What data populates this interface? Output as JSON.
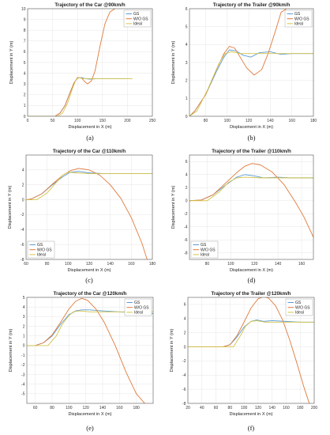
{
  "colors": {
    "gs": "#5b9bd5",
    "wogs": "#e07a3c",
    "ideal": "#d4c44a",
    "grid": "#e6e6e6",
    "axis": "#555555"
  },
  "chart_data": [
    {
      "type": "line",
      "caption": "(a)",
      "title": "Trajectory of the Car @90km/h",
      "xlabel": "Displacement in X (m)",
      "ylabel": "Displacement in Y (m)",
      "xlim": [
        0,
        250
      ],
      "ylim": [
        0,
        10
      ],
      "xticks": [
        0,
        50,
        100,
        150,
        200,
        250
      ],
      "yticks": [
        0,
        1,
        2,
        3,
        4,
        5,
        6,
        7,
        8,
        9,
        10
      ],
      "legend": "top-right",
      "grid": true,
      "series": [
        {
          "name": "GS",
          "color": "#5b9bd5",
          "x": [
            0,
            55,
            65,
            75,
            85,
            93,
            100,
            108,
            115,
            125,
            140,
            160,
            180,
            200
          ],
          "y": [
            0,
            0,
            0.3,
            1.0,
            2.2,
            3.1,
            3.55,
            3.6,
            3.5,
            3.45,
            3.5,
            3.5,
            3.5,
            3.5
          ]
        },
        {
          "name": "W/O GS",
          "color": "#e07a3c",
          "x": [
            0,
            55,
            65,
            75,
            85,
            93,
            100,
            108,
            115,
            120,
            128,
            135,
            145,
            155,
            165,
            175
          ],
          "y": [
            0,
            0,
            0.3,
            1.0,
            2.2,
            3.1,
            3.6,
            3.55,
            3.2,
            3.0,
            3.3,
            4.2,
            6.5,
            8.6,
            9.7,
            10.0
          ]
        },
        {
          "name": "Ideal",
          "color": "#d4c44a",
          "x": [
            0,
            60,
            70,
            80,
            90,
            97,
            103,
            110,
            150,
            210
          ],
          "y": [
            0,
            0,
            0.3,
            1.2,
            2.6,
            3.4,
            3.6,
            3.5,
            3.5,
            3.5
          ]
        }
      ]
    },
    {
      "type": "line",
      "caption": "(b)",
      "title": "Trajectory of the Trailer @90km/h",
      "xlabel": "Displacement in X (m)",
      "ylabel": "Displacement in Y (m)",
      "xlim": [
        65,
        180
      ],
      "ylim": [
        0,
        6
      ],
      "xticks": [
        80,
        100,
        120,
        140,
        160,
        180
      ],
      "yticks": [
        0,
        1,
        2,
        3,
        4,
        5,
        6
      ],
      "legend": "top-right",
      "grid": true,
      "series": [
        {
          "name": "GS",
          "color": "#5b9bd5",
          "x": [
            65,
            70,
            80,
            90,
            97,
            102,
            108,
            115,
            122,
            130,
            140,
            150,
            160,
            170,
            180
          ],
          "y": [
            0,
            0.3,
            1.2,
            2.5,
            3.3,
            3.7,
            3.65,
            3.4,
            3.3,
            3.55,
            3.6,
            3.45,
            3.5,
            3.5,
            3.5
          ]
        },
        {
          "name": "W/O GS",
          "color": "#e07a3c",
          "x": [
            65,
            70,
            80,
            90,
            97,
            102,
            107,
            112,
            118,
            125,
            132,
            138,
            145,
            150,
            155
          ],
          "y": [
            0,
            0.3,
            1.2,
            2.6,
            3.5,
            3.9,
            3.8,
            3.3,
            2.7,
            2.3,
            2.6,
            3.5,
            4.8,
            5.8,
            6.0
          ]
        },
        {
          "name": "Ideal",
          "color": "#d4c44a",
          "x": [
            65,
            72,
            82,
            92,
            98,
            104,
            112,
            130,
            160,
            180
          ],
          "y": [
            0,
            0.3,
            1.5,
            2.9,
            3.5,
            3.6,
            3.5,
            3.5,
            3.5,
            3.5
          ]
        }
      ]
    },
    {
      "type": "line",
      "caption": "(c)",
      "title": "Trajectory of the Car @110km/h",
      "xlabel": "Displacement in X (m)",
      "ylabel": "Displacement in Y (m)",
      "xlim": [
        60,
        180
      ],
      "ylim": [
        -8,
        6
      ],
      "xticks": [
        60,
        80,
        100,
        120,
        140,
        160,
        180
      ],
      "yticks": [
        -8,
        -6,
        -4,
        -2,
        0,
        2,
        4
      ],
      "legend": "bottom-left",
      "grid": true,
      "series": [
        {
          "name": "GS",
          "color": "#5b9bd5",
          "x": [
            60,
            65,
            75,
            85,
            95,
            102,
            110,
            120,
            135,
            150,
            165,
            180
          ],
          "y": [
            0,
            0.1,
            0.8,
            2.0,
            3.1,
            3.7,
            3.8,
            3.6,
            3.5,
            3.5,
            3.5,
            3.5
          ]
        },
        {
          "name": "W/O GS",
          "color": "#e07a3c",
          "x": [
            60,
            65,
            75,
            85,
            95,
            102,
            110,
            120,
            130,
            140,
            150,
            160,
            170,
            175
          ],
          "y": [
            0,
            0.1,
            0.8,
            2.1,
            3.3,
            3.9,
            4.2,
            4.0,
            3.3,
            2.0,
            0.2,
            -2.4,
            -5.8,
            -8.0
          ]
        },
        {
          "name": "Ideal",
          "color": "#d4c44a",
          "x": [
            60,
            70,
            80,
            88,
            95,
            100,
            108,
            120,
            150,
            180
          ],
          "y": [
            0,
            0,
            0.9,
            2.2,
            3.3,
            3.7,
            3.6,
            3.5,
            3.5,
            3.5
          ]
        }
      ]
    },
    {
      "type": "line",
      "caption": "(d)",
      "title": "Trajectory of the Trailer @110km/h",
      "xlabel": "Displacement in X (m)",
      "ylabel": "Displacement in Y (m)",
      "xlim": [
        65,
        170
      ],
      "ylim": [
        -9,
        7
      ],
      "xticks": [
        80,
        100,
        120,
        140,
        160
      ],
      "yticks": [
        -8,
        -6,
        -4,
        -2,
        0,
        2,
        4,
        6
      ],
      "legend": "bottom-left",
      "grid": true,
      "series": [
        {
          "name": "GS",
          "color": "#5b9bd5",
          "x": [
            65,
            75,
            85,
            95,
            105,
            112,
            120,
            128,
            140,
            150,
            160,
            170
          ],
          "y": [
            0,
            0.1,
            0.9,
            2.3,
            3.6,
            4.0,
            3.8,
            3.5,
            3.6,
            3.5,
            3.5,
            3.5
          ]
        },
        {
          "name": "W/O GS",
          "color": "#e07a3c",
          "x": [
            65,
            75,
            85,
            95,
            105,
            112,
            118,
            125,
            135,
            145,
            155,
            162,
            170
          ],
          "y": [
            0,
            0.1,
            0.9,
            2.6,
            4.3,
            5.3,
            5.7,
            5.5,
            4.4,
            2.5,
            -0.3,
            -2.5,
            -5.6
          ]
        },
        {
          "name": "Ideal",
          "color": "#d4c44a",
          "x": [
            65,
            80,
            90,
            98,
            105,
            112,
            125,
            150,
            170
          ],
          "y": [
            0,
            0,
            1.3,
            2.8,
            3.5,
            3.6,
            3.5,
            3.5,
            3.5
          ]
        }
      ]
    },
    {
      "type": "line",
      "caption": "(e)",
      "title": "Trajectory of the Car @120km/h",
      "xlabel": "Displacement in X (m)",
      "ylabel": "Displacement in Y (m)",
      "xlim": [
        50,
        200
      ],
      "ylim": [
        -6,
        5
      ],
      "xticks": [
        60,
        80,
        100,
        120,
        140,
        160,
        180
      ],
      "yticks": [
        -5,
        -4,
        -3,
        -2,
        -1,
        0,
        1,
        2,
        3,
        4,
        5
      ],
      "legend": "top-right",
      "grid": true,
      "series": [
        {
          "name": "GS",
          "color": "#5b9bd5",
          "x": [
            50,
            60,
            70,
            80,
            90,
            100,
            108,
            115,
            125,
            140,
            160,
            180,
            200
          ],
          "y": [
            0,
            0,
            0.3,
            1.0,
            2.2,
            3.2,
            3.6,
            3.7,
            3.7,
            3.6,
            3.5,
            3.4,
            3.3
          ]
        },
        {
          "name": "W/O GS",
          "color": "#e07a3c",
          "x": [
            50,
            60,
            70,
            80,
            90,
            100,
            108,
            115,
            122,
            132,
            142,
            155,
            168,
            180,
            190
          ],
          "y": [
            0,
            0,
            0.3,
            1.1,
            2.4,
            3.8,
            4.6,
            4.9,
            4.7,
            3.8,
            2.4,
            0.0,
            -2.8,
            -5.0,
            -6.0
          ]
        },
        {
          "name": "Ideal",
          "color": "#d4c44a",
          "x": [
            50,
            75,
            85,
            92,
            100,
            105,
            112,
            125,
            150,
            200
          ],
          "y": [
            0,
            0,
            1.0,
            2.2,
            3.1,
            3.5,
            3.6,
            3.5,
            3.5,
            3.5
          ]
        }
      ]
    },
    {
      "type": "line",
      "caption": "(f)",
      "title": "Trajectory of the Trailer @120km/h",
      "xlabel": "Displacement in X (m)",
      "ylabel": "Displacement in Y (m)",
      "xlim": [
        20,
        200
      ],
      "ylim": [
        -8,
        7
      ],
      "xticks": [
        20,
        40,
        60,
        80,
        100,
        120,
        140,
        160,
        180,
        200
      ],
      "yticks": [
        -8,
        -6,
        -4,
        -2,
        0,
        2,
        4,
        6
      ],
      "legend": "top-right",
      "grid": true,
      "series": [
        {
          "name": "GS",
          "color": "#5b9bd5",
          "x": [
            20,
            70,
            80,
            90,
            100,
            110,
            118,
            128,
            140,
            160,
            180,
            200
          ],
          "y": [
            0,
            0,
            0.3,
            1.4,
            2.8,
            3.6,
            3.8,
            3.6,
            3.7,
            3.6,
            3.5,
            3.5
          ]
        },
        {
          "name": "W/O GS",
          "color": "#e07a3c",
          "x": [
            20,
            70,
            80,
            90,
            100,
            110,
            120,
            128,
            135,
            145,
            155,
            165,
            175,
            185,
            193
          ],
          "y": [
            0,
            0,
            0.3,
            1.6,
            3.5,
            5.5,
            6.8,
            7.1,
            6.9,
            5.8,
            3.8,
            1.0,
            -2.2,
            -5.6,
            -8.0
          ]
        },
        {
          "name": "Ideal",
          "color": "#d4c44a",
          "x": [
            20,
            85,
            95,
            102,
            110,
            118,
            130,
            160,
            200
          ],
          "y": [
            0,
            0,
            1.6,
            2.9,
            3.6,
            3.7,
            3.5,
            3.5,
            3.5
          ]
        }
      ]
    }
  ]
}
